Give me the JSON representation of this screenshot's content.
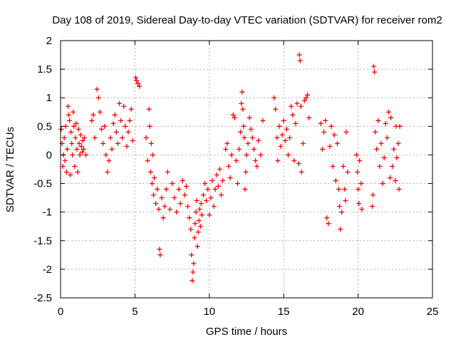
{
  "chart_data": {
    "type": "scatter",
    "title": "Day 108 of 2019, Sidereal Day-to-day VTEC variation (SDTVAR) for receiver rom2",
    "xlabel": "GPS time / hours",
    "ylabel": "SDTVAR / TECUs",
    "xlim": [
      0,
      25
    ],
    "ylim": [
      -2.5,
      2
    ],
    "xticks": [
      0,
      5,
      10,
      15,
      20,
      25
    ],
    "yticks": [
      -2.5,
      -2,
      -1.5,
      -1,
      -0.5,
      0,
      0.5,
      1,
      1.5,
      2
    ],
    "xtick_labels": [
      "0",
      "5",
      "10",
      "15",
      "20",
      "25"
    ],
    "ytick_labels": [
      "-2.5",
      "-2",
      "-1.5",
      "-1",
      "-0.5",
      "0",
      "0.5",
      "1",
      "1.5",
      "2"
    ],
    "grid": true,
    "marker": "+",
    "series": [
      {
        "name": "rom2",
        "color": "#ff0000",
        "points": [
          [
            0.05,
            0.45
          ],
          [
            0.1,
            0.2
          ],
          [
            0.15,
            -0.2
          ],
          [
            0.2,
            0.0
          ],
          [
            0.25,
            0.3
          ],
          [
            0.3,
            -0.1
          ],
          [
            0.35,
            0.5
          ],
          [
            0.4,
            -0.3
          ],
          [
            0.45,
            0.1
          ],
          [
            0.5,
            0.85
          ],
          [
            0.55,
            0.7
          ],
          [
            0.6,
            0.6
          ],
          [
            0.65,
            -0.35
          ],
          [
            0.7,
            0.4
          ],
          [
            0.75,
            0.2
          ],
          [
            0.8,
            0.0
          ],
          [
            0.85,
            0.75
          ],
          [
            0.9,
            0.5
          ],
          [
            0.95,
            -0.2
          ],
          [
            1.0,
            0.3
          ],
          [
            1.05,
            0.55
          ],
          [
            1.1,
            0.1
          ],
          [
            1.15,
            -0.3
          ],
          [
            1.2,
            0.45
          ],
          [
            1.25,
            0.2
          ],
          [
            1.3,
            0.0
          ],
          [
            1.35,
            0.35
          ],
          [
            1.4,
            0.15
          ],
          [
            1.45,
            0.05
          ],
          [
            1.5,
            0.25
          ],
          [
            1.55,
            0.1
          ],
          [
            1.6,
            0.3
          ],
          [
            1.7,
            0.0
          ],
          [
            2.1,
            0.6
          ],
          [
            2.2,
            0.7
          ],
          [
            2.3,
            0.3
          ],
          [
            2.45,
            1.15
          ],
          [
            2.55,
            1.0
          ],
          [
            2.65,
            0.75
          ],
          [
            2.75,
            0.45
          ],
          [
            2.85,
            0.2
          ],
          [
            2.95,
            0.5
          ],
          [
            3.05,
            0.0
          ],
          [
            3.15,
            -0.3
          ],
          [
            3.25,
            -0.1
          ],
          [
            3.35,
            0.3
          ],
          [
            3.45,
            0.1
          ],
          [
            3.55,
            0.55
          ],
          [
            3.65,
            0.7
          ],
          [
            3.75,
            0.4
          ],
          [
            3.85,
            0.2
          ],
          [
            3.95,
            0.9
          ],
          [
            4.05,
            0.6
          ],
          [
            4.15,
            0.3
          ],
          [
            4.25,
            0.85
          ],
          [
            4.35,
            0.5
          ],
          [
            4.45,
            0.15
          ],
          [
            4.55,
            0.4
          ],
          [
            4.65,
            0.6
          ],
          [
            4.75,
            0.8
          ],
          [
            4.85,
            0.25
          ],
          [
            5.05,
            1.35
          ],
          [
            5.1,
            1.3
          ],
          [
            5.2,
            1.25
          ],
          [
            5.3,
            1.2
          ],
          [
            5.75,
            0.3
          ],
          [
            5.85,
            -0.1
          ],
          [
            5.95,
            0.8
          ],
          [
            6.0,
            0.5
          ],
          [
            6.05,
            -0.3
          ],
          [
            6.1,
            0.2
          ],
          [
            6.15,
            -0.5
          ],
          [
            6.2,
            0.0
          ],
          [
            6.25,
            -0.7
          ],
          [
            6.3,
            -0.4
          ],
          [
            6.4,
            -0.85
          ],
          [
            6.5,
            -0.6
          ],
          [
            6.6,
            -0.95
          ],
          [
            6.65,
            -1.65
          ],
          [
            6.7,
            -1.75
          ],
          [
            6.8,
            -0.75
          ],
          [
            6.9,
            -1.1
          ],
          [
            7.0,
            -0.9
          ],
          [
            7.1,
            -0.6
          ],
          [
            7.2,
            -0.3
          ],
          [
            7.35,
            -0.95
          ],
          [
            7.5,
            -0.5
          ],
          [
            7.65,
            -0.75
          ],
          [
            7.8,
            -1.0
          ],
          [
            7.95,
            -0.6
          ],
          [
            8.05,
            -0.85
          ],
          [
            8.2,
            -0.45
          ],
          [
            8.35,
            -0.7
          ],
          [
            8.45,
            -0.55
          ],
          [
            8.55,
            -0.9
          ],
          [
            8.65,
            -1.1
          ],
          [
            8.75,
            -1.3
          ],
          [
            8.8,
            -1.75
          ],
          [
            8.85,
            -2.2
          ],
          [
            8.9,
            -2.05
          ],
          [
            8.95,
            -1.9
          ],
          [
            9.0,
            -1.45
          ],
          [
            9.05,
            -1.2
          ],
          [
            9.1,
            -1.0
          ],
          [
            9.15,
            -0.8
          ],
          [
            9.2,
            -1.6
          ],
          [
            9.25,
            -1.35
          ],
          [
            9.3,
            -1.15
          ],
          [
            9.35,
            -0.95
          ],
          [
            9.4,
            -1.25
          ],
          [
            9.45,
            -0.85
          ],
          [
            9.5,
            -1.05
          ],
          [
            9.6,
            -0.7
          ],
          [
            9.7,
            -0.5
          ],
          [
            9.8,
            -0.8
          ],
          [
            9.9,
            -0.6
          ],
          [
            10.0,
            -1.05
          ],
          [
            10.1,
            -0.75
          ],
          [
            10.2,
            -0.45
          ],
          [
            10.3,
            -0.9
          ],
          [
            10.4,
            -0.6
          ],
          [
            10.5,
            -0.35
          ],
          [
            10.6,
            -0.55
          ],
          [
            10.7,
            -0.25
          ],
          [
            10.8,
            -0.7
          ],
          [
            10.9,
            -0.45
          ],
          [
            11.1,
            0.1
          ],
          [
            11.2,
            0.2
          ],
          [
            11.3,
            -0.2
          ],
          [
            11.4,
            -0.4
          ],
          [
            11.5,
            0.0
          ],
          [
            11.6,
            0.7
          ],
          [
            11.7,
            0.65
          ],
          [
            11.8,
            -0.1
          ],
          [
            11.9,
            -0.5
          ],
          [
            12.0,
            0.1
          ],
          [
            12.1,
            0.4
          ],
          [
            12.15,
            0.9
          ],
          [
            12.2,
            1.1
          ],
          [
            12.25,
            0.8
          ],
          [
            12.3,
            0.5
          ],
          [
            12.35,
            0.3
          ],
          [
            12.4,
            -0.6
          ],
          [
            12.45,
            -0.3
          ],
          [
            12.5,
            0.0
          ],
          [
            12.6,
            0.2
          ],
          [
            12.7,
            0.65
          ],
          [
            12.8,
            0.45
          ],
          [
            12.9,
            0.3
          ],
          [
            13.0,
            0.1
          ],
          [
            13.1,
            -0.1
          ],
          [
            13.2,
            -0.2
          ],
          [
            13.3,
            0.25
          ],
          [
            13.45,
            0.0
          ],
          [
            13.6,
            0.6
          ],
          [
            14.35,
            1.0
          ],
          [
            14.45,
            0.8
          ],
          [
            14.55,
            0.3
          ],
          [
            14.6,
            -0.1
          ],
          [
            14.7,
            0.5
          ],
          [
            14.8,
            0.15
          ],
          [
            14.9,
            0.35
          ],
          [
            15.0,
            0.6
          ],
          [
            15.1,
            0.25
          ],
          [
            15.2,
            0.45
          ],
          [
            15.3,
            0.0
          ],
          [
            15.4,
            0.3
          ],
          [
            15.5,
            0.85
          ],
          [
            15.6,
            0.7
          ],
          [
            15.7,
            -0.1
          ],
          [
            15.8,
            0.55
          ],
          [
            15.9,
            0.9
          ],
          [
            16.0,
            -0.15
          ],
          [
            16.05,
            1.75
          ],
          [
            16.1,
            1.65
          ],
          [
            16.15,
            0.85
          ],
          [
            16.2,
            -0.3
          ],
          [
            16.3,
            0.2
          ],
          [
            16.4,
            0.95
          ],
          [
            16.5,
            1.0
          ],
          [
            16.6,
            1.05
          ],
          [
            16.7,
            0.65
          ],
          [
            17.5,
            0.55
          ],
          [
            17.6,
            0.1
          ],
          [
            17.7,
            0.4
          ],
          [
            17.8,
            0.6
          ],
          [
            17.9,
            -1.1
          ],
          [
            18.0,
            -1.2
          ],
          [
            18.1,
            0.15
          ],
          [
            18.2,
            0.5
          ],
          [
            18.3,
            -0.2
          ],
          [
            18.4,
            0.35
          ],
          [
            18.5,
            -0.45
          ],
          [
            18.6,
            0.2
          ],
          [
            18.7,
            -0.6
          ],
          [
            18.75,
            -0.9
          ],
          [
            18.8,
            -1.3
          ],
          [
            18.9,
            -1.0
          ],
          [
            19.0,
            -0.2
          ],
          [
            19.1,
            -0.6
          ],
          [
            19.15,
            -0.8
          ],
          [
            19.2,
            0.4
          ],
          [
            19.3,
            -0.3
          ],
          [
            19.9,
            0.0
          ],
          [
            19.95,
            -0.3
          ],
          [
            20.0,
            -0.6
          ],
          [
            20.05,
            -0.85
          ],
          [
            20.1,
            -0.1
          ],
          [
            20.2,
            -0.5
          ],
          [
            20.25,
            -0.95
          ],
          [
            20.95,
            -0.9
          ],
          [
            21.0,
            -0.7
          ],
          [
            21.05,
            1.55
          ],
          [
            21.1,
            1.45
          ],
          [
            21.15,
            0.4
          ],
          [
            21.25,
            0.1
          ],
          [
            21.35,
            0.6
          ],
          [
            21.45,
            -0.2
          ],
          [
            21.55,
            0.2
          ],
          [
            21.65,
            -0.5
          ],
          [
            21.75,
            -0.05
          ],
          [
            21.85,
            0.55
          ],
          [
            21.95,
            0.3
          ],
          [
            22.05,
            0.75
          ],
          [
            22.15,
            -0.4
          ],
          [
            22.2,
            0.65
          ],
          [
            22.3,
            -0.2
          ],
          [
            22.4,
            0.1
          ],
          [
            22.5,
            -0.45
          ],
          [
            22.55,
            0.5
          ],
          [
            22.6,
            -0.05
          ],
          [
            22.7,
            0.2
          ],
          [
            22.75,
            -0.6
          ],
          [
            22.8,
            0.5
          ]
        ]
      }
    ]
  }
}
